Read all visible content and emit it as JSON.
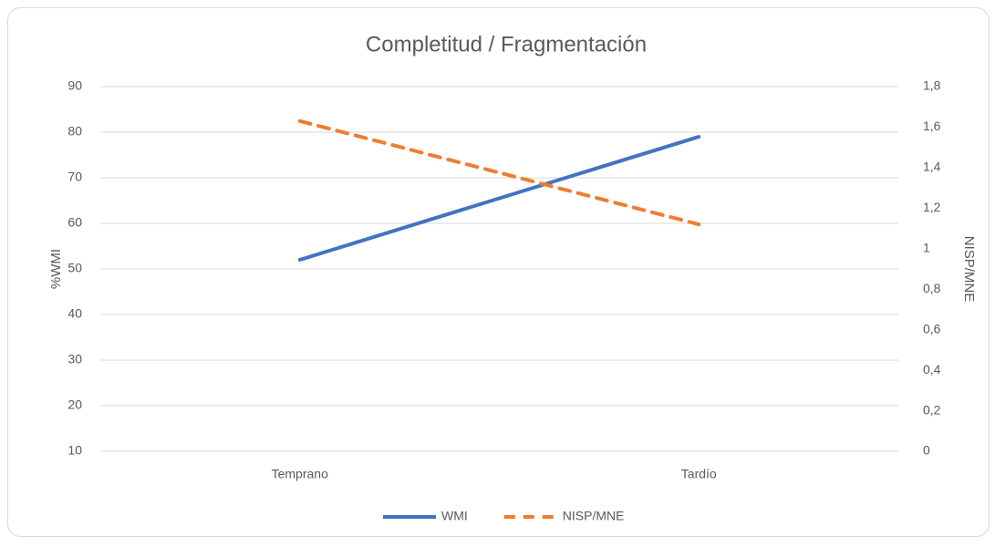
{
  "chart_data": {
    "type": "line",
    "title": "Completitud / Fragmentación",
    "categories": [
      "Temprano",
      "Tardío"
    ],
    "series": [
      {
        "name": "WMI",
        "color": "#4472c4",
        "style": "solid",
        "values": [
          52,
          79
        ]
      },
      {
        "name": "NISP/MNE",
        "color": "#ed7d31",
        "style": "dashed",
        "axis": "y2",
        "values": [
          1.63,
          1.12
        ]
      }
    ],
    "ylabel": "%WMI",
    "y2label": "NISP/MNE",
    "ylim": [
      10,
      90
    ],
    "yticks": [
      10,
      20,
      30,
      40,
      50,
      60,
      70,
      80,
      90
    ],
    "y2lim": [
      0,
      1.8
    ],
    "y2ticks": [
      0,
      {
        "value": 0.2,
        "label": "0,2"
      },
      {
        "value": 0.4,
        "label": "0,4"
      },
      {
        "value": 0.6,
        "label": "0,6"
      },
      {
        "value": 0.8,
        "label": "0,8"
      },
      1,
      {
        "value": 1.2,
        "label": "1,2"
      },
      {
        "value": 1.4,
        "label": "1,4"
      },
      {
        "value": 1.6,
        "label": "1,6"
      },
      {
        "value": 1.8,
        "label": "1,8"
      }
    ],
    "grid": true,
    "legend": "bottom"
  }
}
